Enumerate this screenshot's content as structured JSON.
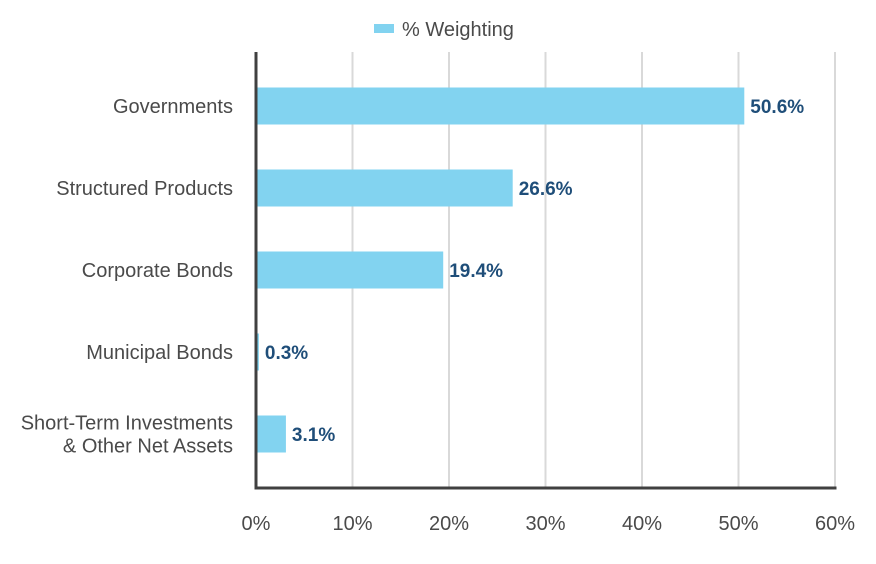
{
  "chart_data": {
    "type": "bar",
    "orientation": "horizontal",
    "categories": [
      [
        "Governments"
      ],
      [
        "Structured Products"
      ],
      [
        "Corporate Bonds"
      ],
      [
        "Municipal Bonds"
      ],
      [
        "Short-Term Investments",
        "& Other Net Assets"
      ]
    ],
    "series": [
      {
        "name": "% Weighting",
        "values": [
          50.6,
          26.6,
          19.4,
          0.3,
          3.1
        ],
        "labels": [
          "50.6%",
          "26.6%",
          "19.4%",
          "0.3%",
          "3.1%"
        ],
        "color": "#82d3f0"
      }
    ],
    "xlim": [
      0,
      60
    ],
    "x_ticks": [
      0,
      10,
      20,
      30,
      40,
      50,
      60
    ],
    "x_tick_labels": [
      "0%",
      "10%",
      "20%",
      "30%",
      "40%",
      "50%",
      "60%"
    ],
    "grid": "vertical",
    "legend": "top-center",
    "title": "",
    "xlabel": "",
    "ylabel": "",
    "colors": {
      "label": "#1f4e79",
      "grid": "#d9d9d9",
      "axis": "#404040"
    }
  }
}
